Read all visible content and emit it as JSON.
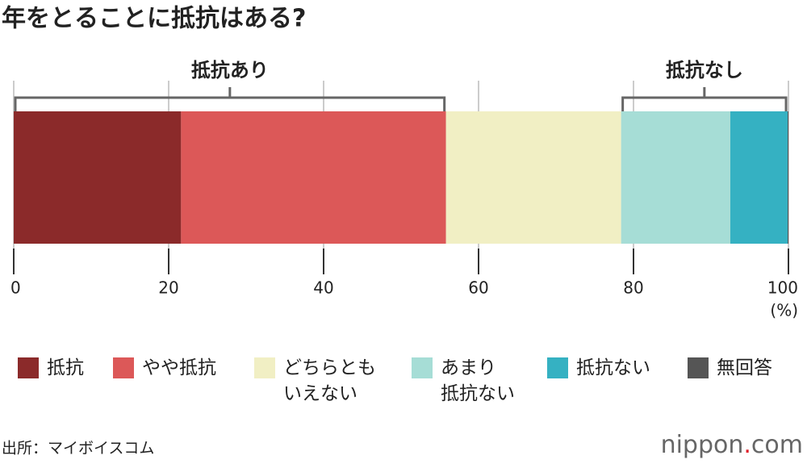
{
  "chart_data": {
    "type": "stacked-bar",
    "title": "年をとることに抵抗はある?",
    "categories": [
      null
    ],
    "series": [
      {
        "name": "抵抗",
        "color": "#8b2a2a",
        "values": [
          21.6
        ]
      },
      {
        "name": "やや抵抗",
        "color": "#dc5858",
        "values": [
          34.2
        ]
      },
      {
        "name": "どちらとも\nいえない",
        "color": "#f1efc4",
        "values": [
          22.6
        ]
      },
      {
        "name": "あまり\n抵抗ない",
        "color": "#a6ddd6",
        "values": [
          14.1
        ]
      },
      {
        "name": "抵抗ない",
        "color": "#35b1c2",
        "values": [
          7.4
        ]
      },
      {
        "name": "無回答",
        "color": "#555555",
        "values": [
          0.1
        ]
      }
    ],
    "xlim": [
      0,
      100
    ],
    "xticks": [
      0,
      20,
      40,
      60,
      80,
      100
    ],
    "x_unit": "(%)",
    "grid": true,
    "annotations": [
      "抵抗あり",
      "抵抗なし"
    ],
    "source": "出所：マイボイスコム",
    "logo": {
      "name": "nippon",
      "dot": ".",
      "tld": "com"
    }
  }
}
